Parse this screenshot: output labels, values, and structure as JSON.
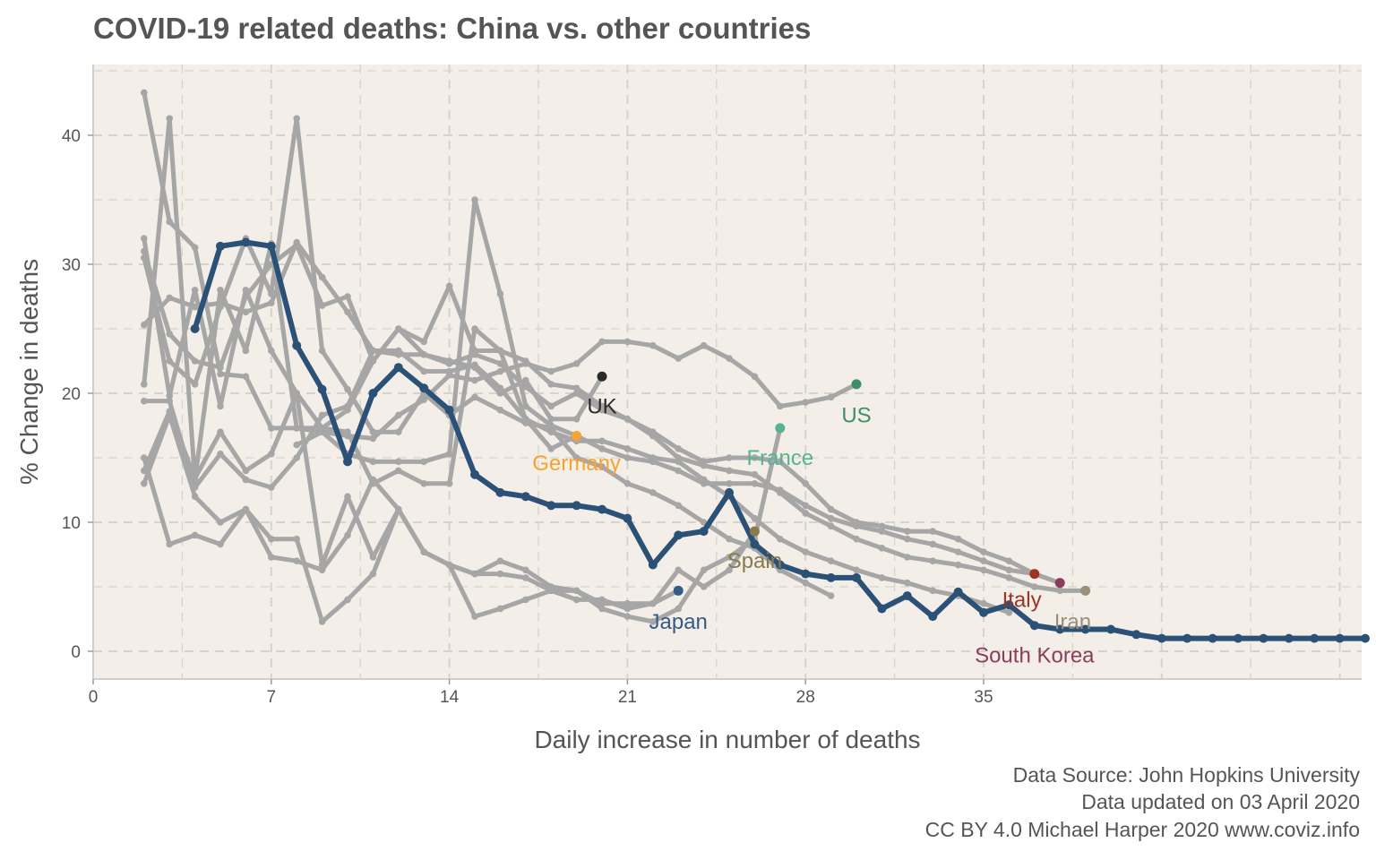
{
  "chart_data": {
    "type": "line",
    "title": "COVID-19 related deaths: China vs. other countries",
    "xlabel": "Daily increase in number of deaths",
    "ylabel": "% Change in deaths",
    "xlim": [
      0,
      50
    ],
    "ylim": [
      -2.2,
      45.5
    ],
    "x_ticks": [
      0,
      7,
      14,
      21,
      28,
      35
    ],
    "y_ticks": [
      0,
      10,
      20,
      30,
      40
    ],
    "grid": true,
    "legend": "none",
    "background_color": "#f3eee8",
    "grid_color": "#d6d3cf",
    "background_line_color": "#a6a6a6",
    "highlight_color": "#2c5176",
    "caption": [
      "Data Source: John Hopkins University",
      "Data updated on 03 April 2020",
      "CC BY 4.0 Michael Harper 2020 www.coviz.info"
    ],
    "highlight_series": {
      "x": [
        4,
        5,
        6,
        7,
        8,
        9,
        10,
        11,
        12,
        13,
        14,
        15,
        16,
        17,
        18,
        19,
        20,
        21,
        22,
        23,
        24,
        25,
        26,
        27,
        28,
        29,
        30,
        31,
        32,
        33,
        34,
        35,
        36,
        37,
        38,
        39,
        40,
        41,
        42,
        43,
        44,
        45,
        46,
        47,
        48,
        49,
        50
      ],
      "y": [
        25,
        31.4,
        31.7,
        31.4,
        23.7,
        20.3,
        14.7,
        20,
        22,
        20.4,
        18.7,
        13.7,
        12.3,
        12,
        11.3,
        11.3,
        11,
        10.3,
        6.7,
        9,
        9.3,
        12.3,
        8.3,
        6.7,
        6,
        5.7,
        5.7,
        3.3,
        4.3,
        2.7,
        4.6,
        3,
        3.6,
        2,
        1.7,
        1.7,
        1.7,
        1.3,
        1,
        1,
        1,
        1,
        1,
        1,
        1,
        1,
        1
      ]
    },
    "series": [
      {
        "name": "UK",
        "color": "#2b2b2b",
        "x": [
          2,
          3,
          4,
          5,
          6,
          7,
          8,
          9,
          10,
          11,
          12,
          13,
          14,
          15,
          16,
          17,
          18,
          19,
          20
        ],
        "y": [
          31,
          24.6,
          22.5,
          22,
          27.5,
          30,
          31.5,
          26.8,
          27.5,
          22.5,
          25,
          23,
          22.5,
          22,
          20,
          21,
          18,
          18,
          21.3
        ],
        "label_x": 20,
        "label_y": 19
      },
      {
        "name": "Germany",
        "color": "#f5a431",
        "x": [
          2,
          3,
          4,
          5,
          6,
          7,
          8,
          9,
          10,
          11,
          12,
          13,
          14,
          15,
          16,
          17,
          18,
          19
        ],
        "y": [
          20.7,
          41.3,
          13.3,
          28,
          23.3,
          31.6,
          17.3,
          17.3,
          17,
          13,
          14,
          13,
          13,
          25,
          23.3,
          18,
          15.7,
          16.7
        ],
        "label_x": 19,
        "label_y": 14.6
      },
      {
        "name": "US",
        "color": "#3f8e6a",
        "x": [
          8,
          9,
          10,
          11,
          12,
          13,
          14,
          15,
          16,
          17,
          18,
          19,
          20,
          21,
          22,
          23,
          24,
          25,
          26,
          27,
          28,
          29,
          30
        ],
        "y": [
          16,
          17,
          16.7,
          16.5,
          18.3,
          19.5,
          21.4,
          21,
          21.7,
          22.3,
          21.7,
          22.3,
          24,
          24,
          23.7,
          22.7,
          23.7,
          22.7,
          21.3,
          19,
          19.3,
          19.7,
          20.7
        ],
        "label_x": 30,
        "label_y": 18.3
      },
      {
        "name": "France",
        "color": "#56b393",
        "x": [
          2,
          3,
          4,
          5,
          6,
          7,
          8,
          9,
          10,
          11,
          12,
          13,
          14,
          15,
          16,
          17,
          18,
          19,
          20,
          21,
          22,
          23,
          24,
          25,
          26,
          27
        ],
        "y": [
          15,
          8.3,
          9,
          8.3,
          11,
          8.7,
          8.7,
          2.3,
          4,
          6,
          11,
          7.7,
          6.7,
          6,
          7,
          6.3,
          5,
          4.7,
          3.3,
          2.7,
          2.3,
          3.3,
          6.3,
          7.3,
          8.7,
          17.3
        ],
        "label_x": 27,
        "label_y": 15
      },
      {
        "name": "Spain",
        "color": "#8a7a4c",
        "x": [
          2,
          3,
          4,
          5,
          6,
          7,
          8,
          9,
          10,
          11,
          12,
          13,
          14,
          15,
          16,
          17,
          18,
          19,
          20,
          21,
          22,
          23,
          24,
          25,
          26
        ],
        "y": [
          13,
          18.3,
          12,
          10,
          11,
          7.3,
          7,
          6.3,
          9,
          13.3,
          11,
          7.7,
          6.7,
          6,
          6,
          5.7,
          4.7,
          4,
          4,
          3.3,
          3.7,
          6.3,
          5,
          6.3,
          9.3
        ],
        "label_x": 26,
        "label_y": 7
      },
      {
        "name": "Japan",
        "color": "#345b86",
        "x": [
          2,
          3,
          4,
          5,
          6,
          7,
          8,
          9,
          10,
          11,
          12,
          13,
          14,
          15,
          16,
          17,
          18,
          19,
          20,
          21,
          22,
          23
        ],
        "y": [
          14,
          18.6,
          13.4,
          17,
          14,
          15.3,
          20,
          6.7,
          12,
          7.3,
          11,
          7.7,
          6.7,
          2.7,
          3.3,
          4,
          4.7,
          4.7,
          3.7,
          3.7,
          3.7,
          4.7
        ],
        "label_x": 23,
        "label_y": 2.3
      },
      {
        "name": "Italy",
        "color": "#9e3322",
        "x": [
          2,
          3,
          4,
          5,
          6,
          7,
          8,
          9,
          10,
          11,
          12,
          13,
          14,
          15,
          16,
          17,
          18,
          19,
          20,
          21,
          22,
          23,
          24,
          25,
          26,
          27,
          28,
          29,
          30,
          31,
          32,
          33,
          34,
          35,
          36,
          37
        ],
        "y": [
          32,
          19.8,
          28,
          19,
          28,
          23.3,
          20,
          17.3,
          18.7,
          22.5,
          25,
          24,
          28.3,
          23.3,
          23.3,
          22.5,
          20.7,
          20.4,
          19,
          18,
          17,
          15.7,
          14.7,
          15,
          15,
          14.7,
          13,
          11,
          10,
          9.7,
          9.3,
          9.3,
          8.7,
          7.7,
          7,
          6
        ],
        "label_x": 36.5,
        "label_y": 4
      },
      {
        "name": "Iran",
        "color": "#999076",
        "x": [
          2,
          3,
          4,
          5,
          6,
          7,
          8,
          9,
          10,
          11,
          12,
          13,
          14,
          15,
          16,
          17,
          18,
          19,
          20,
          21,
          22,
          23,
          24,
          25,
          26,
          27,
          28,
          29,
          30,
          31,
          32,
          33,
          34,
          35,
          36,
          37,
          38,
          39
        ],
        "y": [
          25.3,
          27.4,
          26.7,
          27,
          26.3,
          27,
          31.7,
          29,
          26.3,
          23.3,
          23,
          23,
          22.3,
          23,
          22.3,
          20.5,
          19,
          20,
          18.7,
          18,
          16.7,
          15,
          14.4,
          14,
          13.7,
          12.3,
          10.7,
          9.7,
          8.7,
          8,
          7.3,
          7,
          6.7,
          6.3,
          5.7,
          5,
          4.7,
          4.7
        ],
        "label_x": 38.5,
        "label_y": 2.3
      },
      {
        "name": "South Korea",
        "color": "#8c3d5c",
        "x": [
          2,
          3,
          4,
          5,
          6,
          7,
          8,
          9,
          10,
          11,
          12,
          13,
          14,
          15,
          16,
          17,
          18,
          19,
          20,
          21,
          22,
          23,
          24,
          25,
          26,
          27,
          28,
          29,
          30,
          31,
          32,
          33,
          34,
          35,
          36,
          37,
          38
        ],
        "y": [
          43.3,
          33.3,
          31.3,
          21.5,
          21.3,
          17.3,
          17.3,
          17,
          15.3,
          14.7,
          14.7,
          14.7,
          15.3,
          35,
          27.7,
          19,
          17.5,
          16.7,
          15.7,
          15,
          14.7,
          14,
          13,
          13,
          13,
          12.5,
          11.3,
          10.3,
          9.7,
          9.3,
          8.7,
          8.3,
          7.7,
          7,
          6.3,
          6,
          5.3
        ],
        "label_x": 37,
        "label_y": -0.3
      },
      {
        "name": "",
        "color": "#a6a6a6",
        "x": [
          2,
          3,
          4,
          5,
          6,
          7,
          8,
          9,
          10,
          11,
          12,
          13,
          14,
          15,
          16,
          17,
          18,
          19,
          20,
          21,
          22,
          23,
          24,
          25,
          26,
          27,
          28,
          29,
          30,
          31,
          32,
          33,
          34,
          35,
          36
        ],
        "y": [
          19.4,
          19.4,
          12.7,
          15.3,
          13.3,
          12.7,
          15,
          18.3,
          19,
          23.3,
          23.3,
          21.7,
          21.7,
          22.2,
          20.4,
          18,
          17,
          16.3,
          16.3,
          15.7,
          15,
          14.7,
          13.3,
          12,
          10.3,
          8.7,
          7.7,
          7,
          6.3,
          5.7,
          5.3,
          4.7,
          4.3,
          3.7,
          3
        ]
      },
      {
        "name": "",
        "color": "#a6a6a6",
        "x": [
          2,
          3,
          4,
          5,
          6,
          7,
          8,
          9,
          10,
          11,
          12,
          13,
          14,
          15,
          16,
          17,
          18,
          19,
          20,
          21,
          22,
          23,
          24,
          25,
          26,
          27,
          28,
          29
        ],
        "y": [
          30.5,
          22.5,
          20.7,
          26.7,
          32,
          27.7,
          41.3,
          23.3,
          20.3,
          17,
          17,
          20,
          18.3,
          19.7,
          18.7,
          17.7,
          17.3,
          15,
          14.3,
          13,
          12.3,
          11.3,
          10,
          8.7,
          8,
          6.3,
          5.3,
          4.3
        ]
      }
    ]
  }
}
